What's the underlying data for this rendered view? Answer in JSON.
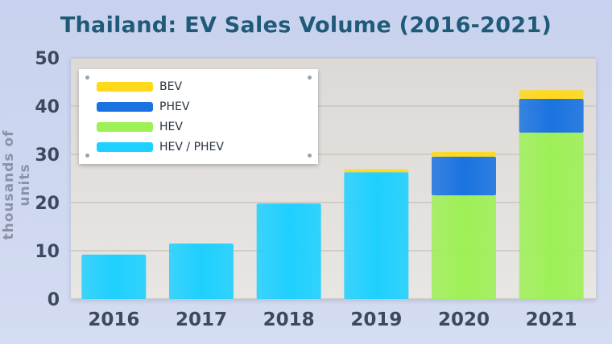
{
  "chart_data": {
    "type": "bar",
    "stacked": true,
    "title": "Thailand: EV Sales Volume (2016-2021)",
    "xlabel": "",
    "ylabel": "thousands of units",
    "ylim": [
      0,
      50
    ],
    "yticks": [
      0,
      10,
      20,
      30,
      40,
      50
    ],
    "grid": true,
    "legend_position": "top-left",
    "categories": [
      "2016",
      "2017",
      "2018",
      "2019",
      "2020",
      "2021"
    ],
    "series": [
      {
        "name": "HEV / PHEV",
        "color": "#1ed0ff",
        "values": [
          9.2,
          11.5,
          19.8,
          26.3,
          0,
          0
        ]
      },
      {
        "name": "HEV",
        "color": "#9ef057",
        "values": [
          0,
          0,
          0,
          0,
          21.5,
          34.5
        ]
      },
      {
        "name": "PHEV",
        "color": "#1a73e0",
        "values": [
          0,
          0,
          0,
          0,
          8.0,
          7.0
        ]
      },
      {
        "name": "BEV",
        "color": "#ffd91a",
        "values": [
          0,
          0,
          0,
          0.6,
          1.0,
          1.8
        ]
      }
    ],
    "legend_order": [
      "BEV",
      "PHEV",
      "HEV",
      "HEV / PHEV"
    ]
  }
}
